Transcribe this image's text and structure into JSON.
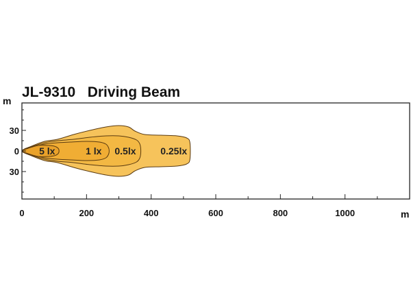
{
  "chart_data": {
    "type": "area",
    "title": "JL-9310   Driving Beam",
    "x_unit": "m",
    "y_unit": "m",
    "xlim": [
      0,
      1200
    ],
    "ylim": [
      -70,
      70
    ],
    "x_ticks": [
      0,
      200,
      400,
      600,
      800,
      1000
    ],
    "y_ticks": [
      30,
      0,
      -30
    ],
    "y_tick_labels": [
      "30",
      "0",
      "30"
    ],
    "zones": [
      {
        "name": "0.25 lx",
        "label": "0.25lx",
        "label_at": [
          470,
          0
        ],
        "color": "#f6c35b",
        "outline": [
          [
            0,
            0
          ],
          [
            30,
            7
          ],
          [
            70,
            14
          ],
          [
            110,
            17
          ],
          [
            160,
            24
          ],
          [
            210,
            30
          ],
          [
            260,
            35
          ],
          [
            300,
            37
          ],
          [
            330,
            35
          ],
          [
            350,
            29
          ],
          [
            380,
            24
          ],
          [
            430,
            23
          ],
          [
            480,
            22
          ],
          [
            510,
            19
          ],
          [
            520,
            12
          ],
          [
            520,
            -12
          ],
          [
            510,
            -19
          ],
          [
            480,
            -22
          ],
          [
            430,
            -23
          ],
          [
            380,
            -24
          ],
          [
            350,
            -29
          ],
          [
            330,
            -35
          ],
          [
            300,
            -37
          ],
          [
            260,
            -35
          ],
          [
            210,
            -30
          ],
          [
            160,
            -24
          ],
          [
            110,
            -17
          ],
          [
            70,
            -14
          ],
          [
            30,
            -7
          ]
        ]
      },
      {
        "name": "0.5 lx",
        "label": "0.5lx",
        "label_at": [
          320,
          0
        ],
        "color": "#f3b843",
        "outline": [
          [
            0,
            0
          ],
          [
            30,
            6
          ],
          [
            70,
            12
          ],
          [
            110,
            15
          ],
          [
            160,
            17
          ],
          [
            210,
            20
          ],
          [
            260,
            22
          ],
          [
            300,
            22
          ],
          [
            330,
            20
          ],
          [
            355,
            16
          ],
          [
            365,
            10
          ],
          [
            368,
            0
          ],
          [
            365,
            -10
          ],
          [
            355,
            -16
          ],
          [
            330,
            -20
          ],
          [
            300,
            -22
          ],
          [
            260,
            -22
          ],
          [
            210,
            -20
          ],
          [
            160,
            -17
          ],
          [
            110,
            -15
          ],
          [
            70,
            -12
          ],
          [
            30,
            -6
          ]
        ]
      },
      {
        "name": "1 lx",
        "label": "1 lx",
        "label_at": [
          222,
          0
        ],
        "color": "#f0ad34",
        "outline": [
          [
            0,
            0
          ],
          [
            30,
            5
          ],
          [
            70,
            10
          ],
          [
            110,
            12
          ],
          [
            150,
            13
          ],
          [
            200,
            14
          ],
          [
            240,
            13
          ],
          [
            260,
            10
          ],
          [
            268,
            5
          ],
          [
            270,
            0
          ],
          [
            268,
            -5
          ],
          [
            260,
            -10
          ],
          [
            240,
            -13
          ],
          [
            200,
            -14
          ],
          [
            150,
            -13
          ],
          [
            110,
            -12
          ],
          [
            70,
            -10
          ],
          [
            30,
            -5
          ]
        ]
      },
      {
        "name": "5 lx",
        "label": "5 lx",
        "label_at": [
          78,
          0
        ],
        "color": "#eaa22a",
        "outline": [
          [
            0,
            0
          ],
          [
            20,
            4
          ],
          [
            50,
            8
          ],
          [
            80,
            8
          ],
          [
            100,
            7
          ],
          [
            112,
            4
          ],
          [
            115,
            0
          ],
          [
            112,
            -4
          ],
          [
            100,
            -7
          ],
          [
            80,
            -8
          ],
          [
            50,
            -8
          ],
          [
            20,
            -4
          ]
        ]
      }
    ]
  }
}
